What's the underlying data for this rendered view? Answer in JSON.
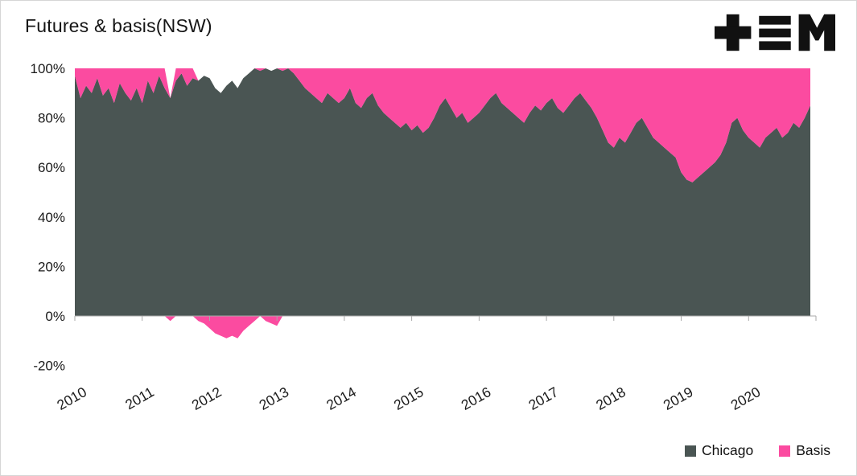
{
  "header": {
    "title": "Futures & basis(NSW)"
  },
  "legend": [
    {
      "label": "Chicago",
      "color": "#4a5553"
    },
    {
      "label": "Basis",
      "color": "#fb4ba0"
    }
  ],
  "chart_data": {
    "type": "area",
    "stacked": true,
    "title": "Futures & basis(NSW)",
    "x_note": "monthly values, Jan 2010 through Dec 2020",
    "x_start_year": 2010,
    "x_interval_years": 0.08333,
    "xticks": [
      2010,
      2011,
      2012,
      2013,
      2014,
      2015,
      2016,
      2017,
      2018,
      2019,
      2020
    ],
    "yticks": [
      100,
      80,
      60,
      40,
      20,
      0,
      -20
    ],
    "ytick_labels": [
      "100%",
      "80%",
      "60%",
      "40%",
      "20%",
      "0%",
      "-20%"
    ],
    "ylim": [
      -20,
      100
    ],
    "y_format": "percent",
    "grid": false,
    "legend_position": "bottom-right",
    "series": [
      {
        "name": "Chicago",
        "color": "#4a5553",
        "values": [
          97,
          88,
          93,
          90,
          96,
          89,
          92,
          86,
          94,
          90,
          87,
          92,
          86,
          95,
          90,
          97,
          92,
          88,
          95,
          98,
          93,
          96,
          95,
          97,
          96,
          92,
          90,
          93,
          95,
          92,
          96,
          98,
          100,
          99,
          100,
          99,
          100,
          99,
          100,
          98,
          95,
          92,
          90,
          88,
          86,
          90,
          88,
          86,
          88,
          92,
          86,
          84,
          88,
          90,
          85,
          82,
          80,
          78,
          76,
          78,
          75,
          77,
          74,
          76,
          80,
          85,
          88,
          84,
          80,
          82,
          78,
          80,
          82,
          85,
          88,
          90,
          86,
          84,
          82,
          80,
          78,
          82,
          85,
          83,
          86,
          88,
          84,
          82,
          85,
          88,
          90,
          87,
          84,
          80,
          75,
          70,
          68,
          72,
          70,
          74,
          78,
          80,
          76,
          72,
          70,
          68,
          66,
          64,
          58,
          55,
          54,
          56,
          58,
          60,
          62,
          65,
          70,
          78,
          80,
          75,
          72,
          70,
          68,
          72,
          74,
          76,
          72,
          74,
          78,
          76,
          80,
          85
        ]
      },
      {
        "name": "Basis",
        "color": "#fb4ba0",
        "values": [
          3,
          12,
          7,
          10,
          4,
          11,
          8,
          14,
          6,
          10,
          13,
          8,
          14,
          5,
          10,
          3,
          8,
          -2,
          5,
          2,
          7,
          4,
          -2,
          -3,
          -5,
          -7,
          -8,
          -9,
          -8,
          -9,
          -6,
          -4,
          -2,
          1,
          -2,
          -3,
          -4,
          1,
          0,
          2,
          5,
          8,
          10,
          12,
          14,
          10,
          12,
          14,
          12,
          8,
          14,
          16,
          12,
          10,
          15,
          18,
          20,
          22,
          24,
          22,
          25,
          23,
          26,
          24,
          20,
          15,
          12,
          16,
          20,
          18,
          22,
          20,
          18,
          15,
          12,
          10,
          14,
          16,
          18,
          20,
          22,
          18,
          15,
          17,
          14,
          12,
          16,
          18,
          15,
          12,
          10,
          13,
          16,
          20,
          25,
          30,
          32,
          28,
          30,
          26,
          22,
          20,
          24,
          28,
          30,
          32,
          34,
          36,
          42,
          45,
          46,
          44,
          42,
          40,
          38,
          35,
          30,
          22,
          20,
          25,
          28,
          30,
          32,
          28,
          26,
          24,
          28,
          26,
          22,
          24,
          20,
          15
        ]
      }
    ]
  }
}
